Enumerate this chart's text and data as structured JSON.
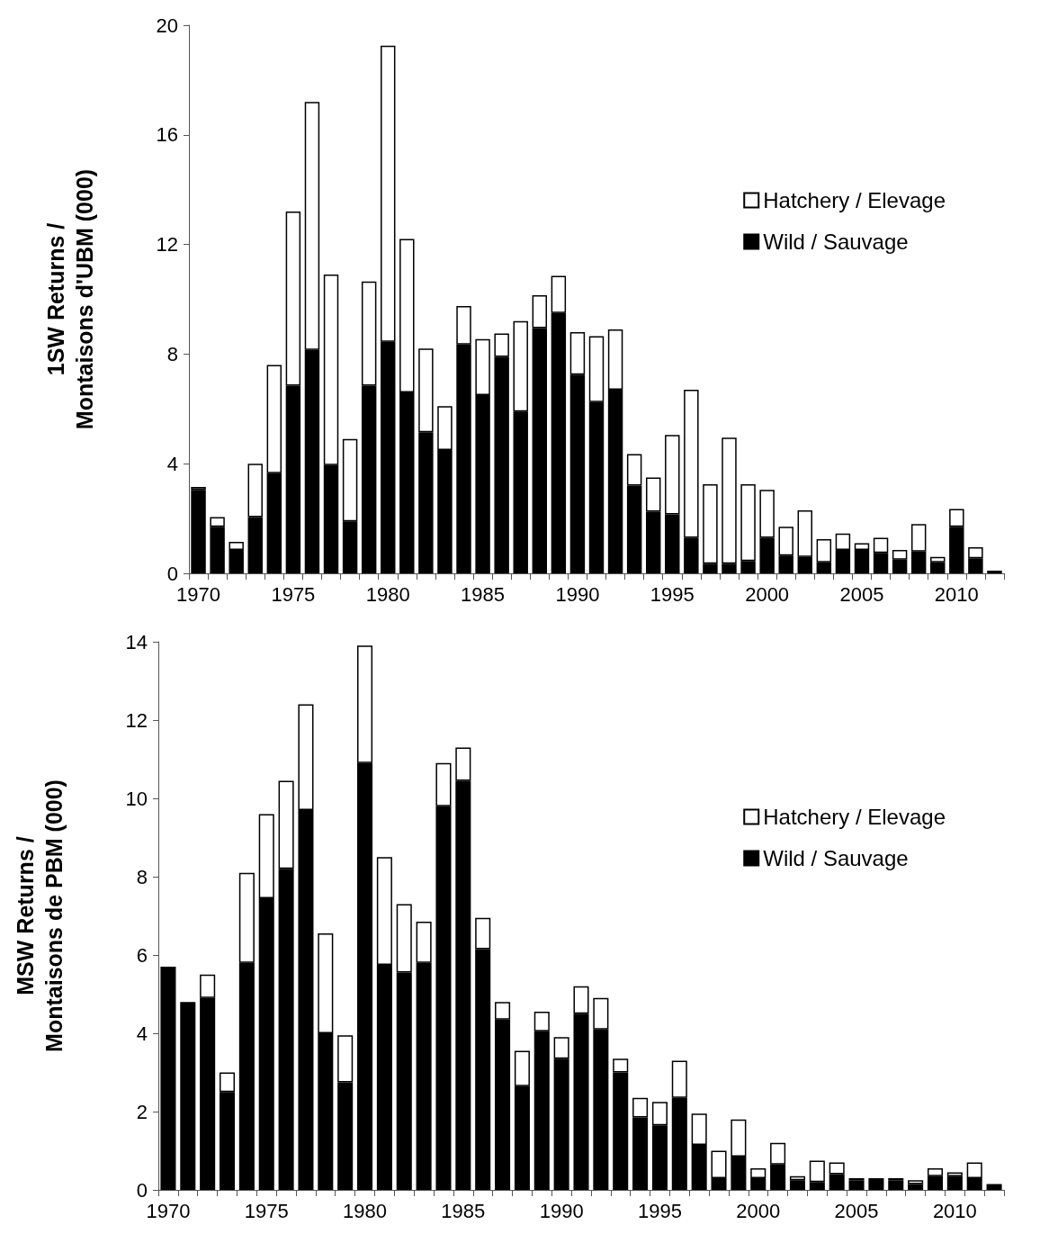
{
  "chart_data": [
    {
      "type": "bar",
      "stacked": true,
      "ylabel": "1SW Returns /\nMontaisons d'UBM (000)",
      "categories": [
        "1970",
        null,
        null,
        null,
        null,
        "1975",
        null,
        null,
        null,
        null,
        "1980",
        null,
        null,
        null,
        null,
        "1985",
        null,
        null,
        null,
        null,
        "1990",
        null,
        null,
        null,
        null,
        "1995",
        null,
        null,
        null,
        null,
        "2000",
        null,
        null,
        null,
        null,
        "2005",
        null,
        null,
        null,
        null,
        "2010",
        null,
        null
      ],
      "series": [
        {
          "name": "Wild / Sauvage",
          "color": "#000000",
          "values": [
            3.05,
            1.7,
            0.85,
            2.05,
            3.65,
            6.85,
            8.15,
            3.95,
            1.9,
            6.85,
            8.45,
            6.6,
            5.15,
            4.5,
            8.35,
            6.5,
            7.9,
            5.9,
            8.95,
            9.5,
            7.25,
            6.25,
            6.7,
            3.2,
            2.25,
            2.15,
            1.3,
            0.35,
            0.35,
            0.45,
            1.3,
            0.65,
            0.6,
            0.4,
            0.85,
            0.85,
            0.75,
            0.5,
            0.8,
            0.4,
            1.7,
            0.55,
            0.1
          ]
        },
        {
          "name": "Hatchery / Elevage",
          "color": "#ffffff",
          "values": [
            0.1,
            0.35,
            0.3,
            1.95,
            3.95,
            6.35,
            9.05,
            6.95,
            3.0,
            3.8,
            10.8,
            5.6,
            3.05,
            1.6,
            1.4,
            2.05,
            0.85,
            3.3,
            1.2,
            1.35,
            1.55,
            2.4,
            2.2,
            1.15,
            1.25,
            2.9,
            5.4,
            2.9,
            4.6,
            2.8,
            1.75,
            1.05,
            1.7,
            0.85,
            0.6,
            0.25,
            0.55,
            0.35,
            1.0,
            0.2,
            0.65,
            0.4,
            null
          ]
        }
      ],
      "ylim": [
        0,
        20
      ],
      "yticks": [
        0,
        4,
        8,
        12,
        16,
        20
      ],
      "grid": false,
      "legend": "right"
    },
    {
      "type": "bar",
      "stacked": true,
      "ylabel": "MSW Returns /\nMontaisons de PBM (000)",
      "categories": [
        "1970",
        null,
        null,
        null,
        null,
        "1975",
        null,
        null,
        null,
        null,
        "1980",
        null,
        null,
        null,
        null,
        "1985",
        null,
        null,
        null,
        null,
        "1990",
        null,
        null,
        null,
        null,
        "1995",
        null,
        null,
        null,
        null,
        "2000",
        null,
        null,
        null,
        null,
        "2005",
        null,
        null,
        null,
        null,
        "2010",
        null,
        null
      ],
      "series": [
        {
          "name": "Wild / Sauvage",
          "color": "#000000",
          "values": [
            5.7,
            4.8,
            4.9,
            2.5,
            5.8,
            7.45,
            8.2,
            9.7,
            4.0,
            2.75,
            10.9,
            5.75,
            5.55,
            5.8,
            9.8,
            10.45,
            6.15,
            4.35,
            2.65,
            4.05,
            3.35,
            4.5,
            4.1,
            3.0,
            1.85,
            1.65,
            2.35,
            1.15,
            0.3,
            0.85,
            0.3,
            0.65,
            0.25,
            0.2,
            0.4,
            0.25,
            0.3,
            0.25,
            0.15,
            0.35,
            0.35,
            0.3,
            0.15
          ]
        },
        {
          "name": "Hatchery / Elevage",
          "color": "#ffffff",
          "values": [
            null,
            null,
            0.6,
            0.5,
            2.3,
            2.15,
            2.25,
            2.7,
            2.55,
            1.2,
            3.0,
            2.75,
            1.75,
            1.05,
            1.1,
            0.85,
            0.8,
            0.45,
            0.9,
            0.5,
            0.55,
            0.7,
            0.8,
            0.35,
            0.5,
            0.6,
            0.95,
            0.8,
            0.7,
            0.95,
            0.25,
            0.55,
            0.1,
            0.55,
            0.3,
            0.05,
            null,
            0.05,
            0.1,
            0.2,
            0.1,
            0.4,
            null
          ]
        }
      ],
      "ylim": [
        0,
        14
      ],
      "yticks": [
        0,
        2,
        4,
        6,
        8,
        10,
        12,
        14
      ],
      "grid": false,
      "legend": "right"
    }
  ]
}
